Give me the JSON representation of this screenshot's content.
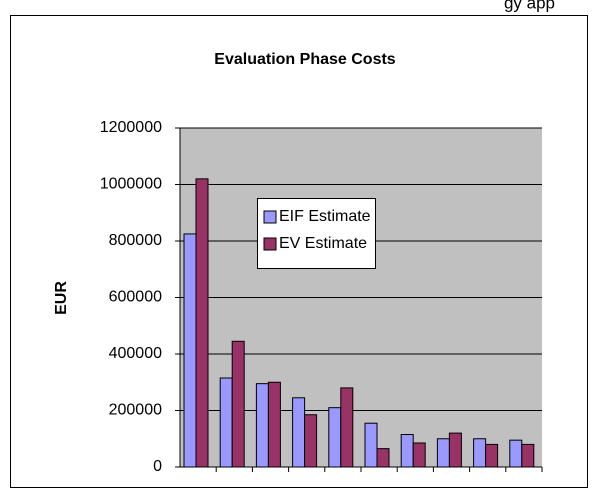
{
  "header_fragment": "gy app",
  "chart_data": {
    "type": "bar",
    "title": "Evaluation Phase Costs",
    "y_label": "EUR",
    "categories": [
      null,
      null,
      null,
      null,
      null,
      null,
      null,
      null,
      null,
      null
    ],
    "series": [
      {
        "name": "EIF Estimate",
        "color": "#9999ff",
        "values": [
          825000,
          315000,
          295000,
          245000,
          210000,
          155000,
          115000,
          100000,
          100000,
          95000
        ]
      },
      {
        "name": "EV Estimate",
        "color": "#993366",
        "values": [
          1020000,
          445000,
          300000,
          185000,
          280000,
          65000,
          85000,
          120000,
          80000,
          80000
        ]
      }
    ],
    "ylim": [
      0,
      1200000
    ],
    "yticks": [
      0,
      200000,
      400000,
      600000,
      800000,
      1000000,
      1200000
    ],
    "grid": true,
    "plot_background": "#c0c0c0"
  }
}
